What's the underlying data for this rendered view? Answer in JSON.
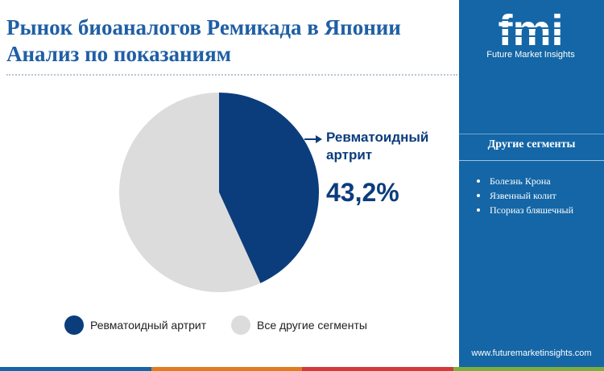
{
  "header": {
    "title_line1": "Рынок биоаналогов Ремикада в Японии",
    "title_line2": "Анализ по показаниям"
  },
  "colors": {
    "highlight": "#0b3d7c",
    "other": "#dcdcdc",
    "title": "#1f5fa5",
    "sidebar": "#1466a6",
    "bottom_bar": [
      "#1466a6",
      "#e07b1f",
      "#d23a3a",
      "#7cae3e"
    ]
  },
  "chart_data": {
    "type": "pie",
    "slices": [
      {
        "label": "Ревматоидный артрит",
        "value": 43.2,
        "color": "#0b3d7c"
      },
      {
        "label": "Все другие сегменты",
        "value": 56.8,
        "color": "#dcdcdc"
      }
    ],
    "callout": {
      "label": "Ревматоидный артрит",
      "value_text": "43,2%"
    },
    "legend": {
      "placement": "bottom",
      "entries": [
        "Ревматоидный артрит",
        "Все другие сегменты"
      ]
    }
  },
  "sidebar": {
    "logo_letters": "fmi",
    "logo_tagline": "Future Market Insights",
    "segments_title": "Другие сегменты",
    "segments": [
      "Болезнь Крона",
      "Язвенный колит",
      "Псориаз бляшечный"
    ],
    "website": "www.futuremarketinsights.com"
  }
}
